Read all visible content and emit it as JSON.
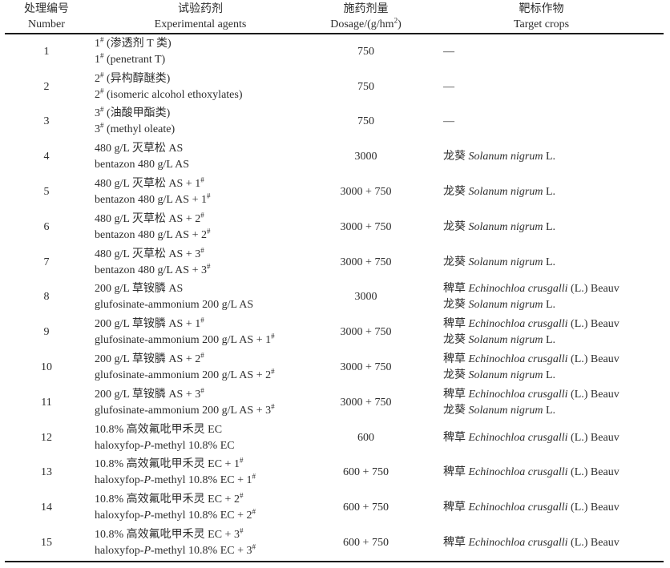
{
  "page": {
    "background_color": "#ffffff",
    "text_color": "#2d2d2d",
    "rule_color": "#1c1c1c"
  },
  "table": {
    "columns": [
      {
        "id": "number",
        "zh": "处理编号",
        "en": "Number"
      },
      {
        "id": "agents",
        "zh": "试验药剂",
        "en": "Experimental agents"
      },
      {
        "id": "dosage",
        "zh": "施药剂量",
        "en": "Dosage/(g/hm^2)"
      },
      {
        "id": "targets",
        "zh": "靶标作物",
        "en": "Target crops"
      }
    ],
    "rows": [
      {
        "number": "1",
        "agent_zh": "1^# (渗透剂 T 类)",
        "agent_en": "1^# (penetrant T)",
        "dosage": "750",
        "targets": [
          "—"
        ]
      },
      {
        "number": "2",
        "agent_zh": "2^# (异构醇醚类)",
        "agent_en": "2^# (isomeric alcohol ethoxylates)",
        "dosage": "750",
        "targets": [
          "—"
        ]
      },
      {
        "number": "3",
        "agent_zh": "3^# (油酸甲酯类)",
        "agent_en": "3^# (methyl oleate)",
        "dosage": "750",
        "targets": [
          "—"
        ]
      },
      {
        "number": "4",
        "agent_zh": "480 g/L 灭草松 AS",
        "agent_en": "bentazon 480 g/L AS",
        "dosage": "3000",
        "targets": [
          "龙葵 *Solanum nigrum* L."
        ]
      },
      {
        "number": "5",
        "agent_zh": "480 g/L 灭草松 AS + 1^#",
        "agent_en": "bentazon 480 g/L AS + 1^#",
        "dosage": "3000 + 750",
        "targets": [
          "龙葵 *Solanum nigrum* L."
        ]
      },
      {
        "number": "6",
        "agent_zh": "480 g/L 灭草松 AS + 2^#",
        "agent_en": "bentazon 480 g/L AS + 2^#",
        "dosage": "3000 + 750",
        "targets": [
          "龙葵 *Solanum nigrum* L."
        ]
      },
      {
        "number": "7",
        "agent_zh": "480 g/L 灭草松 AS + 3^#",
        "agent_en": "bentazon 480 g/L AS + 3^#",
        "dosage": "3000 + 750",
        "targets": [
          "龙葵 *Solanum nigrum* L."
        ]
      },
      {
        "number": "8",
        "agent_zh": "200 g/L 草铵膦 AS",
        "agent_en": "glufosinate-ammonium 200 g/L AS",
        "dosage": "3000",
        "targets": [
          "稗草 *Echinochloa crusgalli* (L.) Beauv",
          "龙葵 *Solanum nigrum* L."
        ]
      },
      {
        "number": "9",
        "agent_zh": "200 g/L 草铵膦 AS + 1^#",
        "agent_en": "glufosinate-ammonium 200 g/L AS + 1^#",
        "dosage": "3000 + 750",
        "targets": [
          "稗草 *Echinochloa crusgalli* (L.) Beauv",
          "龙葵 *Solanum nigrum* L."
        ]
      },
      {
        "number": "10",
        "agent_zh": "200 g/L 草铵膦 AS + 2^#",
        "agent_en": "glufosinate-ammonium 200 g/L AS + 2^#",
        "dosage": "3000 + 750",
        "targets": [
          "稗草 *Echinochloa crusgalli* (L.) Beauv",
          "龙葵 *Solanum nigrum* L."
        ]
      },
      {
        "number": "11",
        "agent_zh": "200 g/L 草铵膦 AS + 3^#",
        "agent_en": "glufosinate-ammonium 200 g/L AS + 3^#",
        "dosage": "3000 + 750",
        "targets": [
          "稗草 *Echinochloa crusgalli* (L.) Beauv",
          "龙葵 *Solanum nigrum* L."
        ]
      },
      {
        "number": "12",
        "agent_zh": "10.8% 高效氟吡甲禾灵 EC",
        "agent_en": "haloxyfop-*P*-methyl 10.8% EC",
        "dosage": "600",
        "targets": [
          "稗草 *Echinochloa crusgalli* (L.) Beauv"
        ]
      },
      {
        "number": "13",
        "agent_zh": "10.8% 高效氟吡甲禾灵 EC + 1^#",
        "agent_en": "haloxyfop-*P*-methyl 10.8% EC + 1^#",
        "dosage": "600 + 750",
        "targets": [
          "稗草 *Echinochloa crusgalli* (L.) Beauv"
        ]
      },
      {
        "number": "14",
        "agent_zh": "10.8% 高效氟吡甲禾灵 EC + 2^#",
        "agent_en": "haloxyfop-*P*-methyl 10.8% EC + 2^#",
        "dosage": "600 + 750",
        "targets": [
          "稗草 *Echinochloa crusgalli* (L.) Beauv"
        ]
      },
      {
        "number": "15",
        "agent_zh": "10.8% 高效氟吡甲禾灵 EC + 3^#",
        "agent_en": "haloxyfop-*P*-methyl 10.8% EC + 3^#",
        "dosage": "600 + 750",
        "targets": [
          "稗草 *Echinochloa crusgalli* (L.) Beauv"
        ]
      }
    ]
  }
}
